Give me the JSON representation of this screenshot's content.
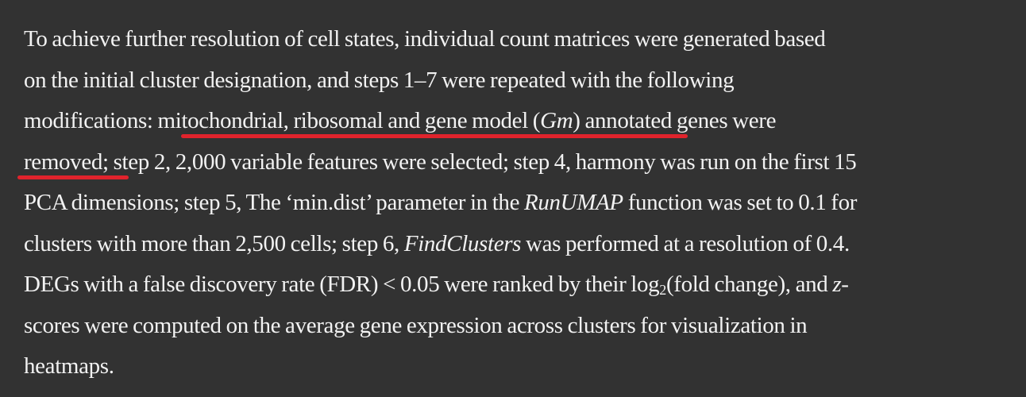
{
  "paragraph": {
    "l1": "To achieve further resolution of cell states, individual count matrices were generated based",
    "l2": "on the initial cluster designation, and steps 1–7 were repeated with the following",
    "l3_a": "modifications: mitochondrial, ribosomal and gene model (",
    "l3_gm": "Gm",
    "l3_b": ") annotated genes were",
    "l4": "removed; step 2, 2,000 variable features were selected; step 4, harmony was run on the first 15",
    "l5_a": "PCA dimensions; step 5, The ‘min.dist’ parameter in the ",
    "l5_fn": "RunUMAP",
    "l5_b": " function was set to 0.1 for",
    "l6_a": "clusters with more than 2,500 cells; step 6, ",
    "l6_fn": "FindClusters",
    "l6_b": " was performed at a resolution of 0.4.",
    "l7_a": "DEGs with a false discovery rate (FDR) < 0.05 were ranked by their log",
    "l7_sub": "2",
    "l7_b": "(fold change), and ",
    "l7_z": "z",
    "l7_c": "-",
    "l8": "scores were computed on the average gene expression across clusters for visualization in",
    "l9": "heatmaps."
  },
  "annotation": {
    "color": "#e0232c"
  }
}
